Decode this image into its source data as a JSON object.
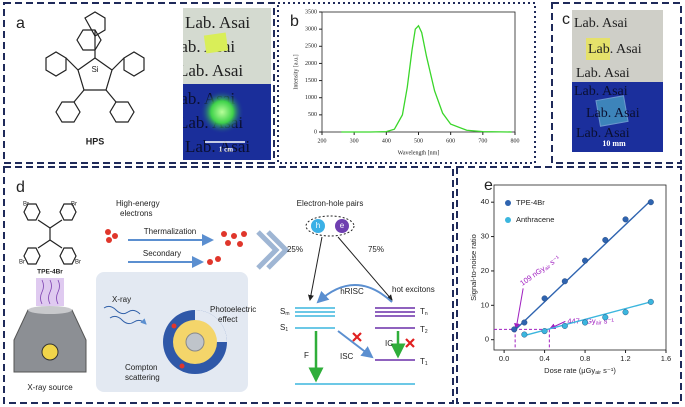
{
  "panels": [
    "a",
    "b",
    "c",
    "d",
    "e"
  ],
  "a": {
    "molecule": "HPS",
    "si": "Si",
    "photo_text": "Lab. Asai",
    "scale": "1 cm"
  },
  "c": {
    "photo_text": "Lab. Asai",
    "scale": "10 mm"
  },
  "d": {
    "br": "Br",
    "molecule": "TPE-4Br",
    "source": "X-ray source",
    "electrons": [
      "High-energy",
      "electrons"
    ],
    "thermalization": "Thermalization",
    "secondary": "Secondary",
    "xray": "X-ray",
    "photoelectric": [
      "Photoelectric",
      "effect"
    ],
    "compton": [
      "Compton",
      "scattering"
    ],
    "pairs": "Electron-hole pairs",
    "h": "h",
    "e": "e",
    "p25": "25%",
    "p75": "75%",
    "hrisc": "hRISC",
    "hot": "hot excitons",
    "levels": [
      [
        "S",
        "m"
      ],
      [
        "S",
        "1"
      ],
      [
        "T",
        "n"
      ],
      [
        "T",
        "2"
      ],
      [
        "T",
        "1"
      ]
    ],
    "f": "F",
    "isc": "ISC",
    "ic": "IC"
  },
  "chart_data": [
    {
      "type": "line",
      "xlabel": "Wavelength [nm]",
      "ylabel": "Intensity [a.u.]",
      "x": [
        260,
        300,
        350,
        400,
        425,
        450,
        465,
        480,
        490,
        500,
        510,
        525,
        550,
        575,
        600,
        650,
        700,
        790
      ],
      "series": [
        {
          "color": "#3ad62a",
          "values": [
            0,
            0,
            0,
            10,
            80,
            500,
            1300,
            2400,
            3000,
            3100,
            2900,
            2200,
            1200,
            550,
            230,
            50,
            10,
            0
          ]
        }
      ],
      "xlim": [
        200,
        800
      ],
      "xticks": [
        200,
        300,
        400,
        500,
        600,
        700,
        800
      ],
      "ylim": [
        0,
        3500
      ],
      "yticks": [
        0,
        500,
        1000,
        1500,
        2000,
        2500,
        3000,
        3500
      ]
    },
    {
      "type": "scatter",
      "xlabel": [
        "Dose rate (μGy",
        "air",
        " s⁻¹)"
      ],
      "ylabel": "Signal-to-noise ratio",
      "series": [
        {
          "name": "TPE-4Br",
          "color": "#2f64b0",
          "x": [
            0.1,
            0.2,
            0.4,
            0.6,
            0.8,
            1.0,
            1.2,
            1.45
          ],
          "values": [
            3,
            5,
            12,
            17,
            23,
            29,
            35,
            40
          ],
          "fit": {
            "x": [
              0.1,
              1.45
            ],
            "values": [
              2.6,
              40.5
            ]
          }
        },
        {
          "name": "Anthracene",
          "color": "#3bb6de",
          "x": [
            0.2,
            0.4,
            0.6,
            0.8,
            1.0,
            1.2,
            1.45
          ],
          "values": [
            1.5,
            2.5,
            4,
            5,
            6.5,
            8,
            11
          ],
          "fit": {
            "x": [
              0.2,
              1.45
            ],
            "values": [
              1.2,
              11
            ]
          }
        }
      ],
      "threshold": 3,
      "annotations": [
        {
          "x": 0.109,
          "text": [
            "109 nGy",
            "air",
            " s⁻¹"
          ]
        },
        {
          "x": 0.447,
          "text": [
            "447 nGy",
            "air",
            " s⁻¹"
          ]
        }
      ],
      "xlim": [
        -0.1,
        1.6
      ],
      "xticks": [
        {
          "value": 0,
          "label": "0.0"
        },
        0.4,
        0.8,
        1.2,
        1.6
      ],
      "ylim": [
        -3,
        45
      ],
      "yticks": [
        0,
        10,
        20,
        30,
        40
      ]
    }
  ]
}
